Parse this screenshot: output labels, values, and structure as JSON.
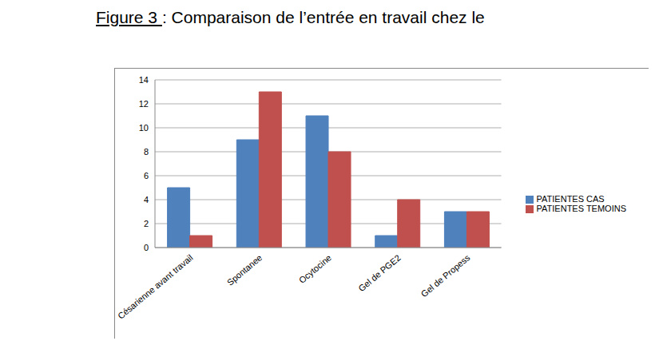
{
  "chart_data": {
    "type": "bar",
    "title": "Figure 3 : Comparaison de l’entrée en travail chez le",
    "categories": [
      "Césarienne avant travail",
      "Spontanee",
      "Ocytocine",
      "Gel de PGE2",
      "Gel de Propess"
    ],
    "series": [
      {
        "name": "PATIENTES CAS",
        "color": "#4f81bd",
        "values": [
          5,
          9,
          11,
          1,
          3
        ]
      },
      {
        "name": "PATIENTES TEMOINS",
        "color": "#c0504d",
        "values": [
          1,
          13,
          8,
          4,
          3
        ]
      }
    ],
    "ylim": [
      0,
      14
    ],
    "yticks": [
      0,
      2,
      4,
      6,
      8,
      10,
      12,
      14
    ],
    "grid": true,
    "legend": "right"
  }
}
